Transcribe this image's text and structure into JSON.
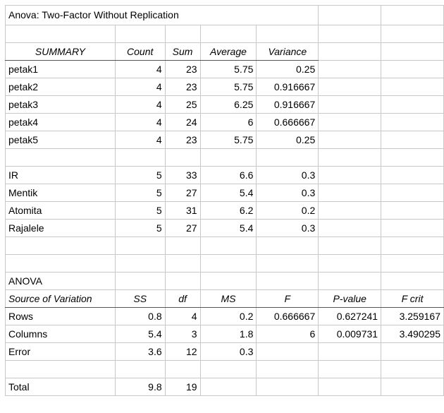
{
  "title": "Anova: Two-Factor Without Replication",
  "summary": {
    "headers": [
      "SUMMARY",
      "Count",
      "Sum",
      "Average",
      "Variance"
    ],
    "rows_block": [
      [
        "petak1",
        "4",
        "23",
        "5.75",
        "0.25"
      ],
      [
        "petak2",
        "4",
        "23",
        "5.75",
        "0.916667"
      ],
      [
        "petak3",
        "4",
        "25",
        "6.25",
        "0.916667"
      ],
      [
        "petak4",
        "4",
        "24",
        "6",
        "0.666667"
      ],
      [
        "petak5",
        "4",
        "23",
        "5.75",
        "0.25"
      ]
    ],
    "columns_block": [
      [
        "IR",
        "5",
        "33",
        "6.6",
        "0.3"
      ],
      [
        "Mentik",
        "5",
        "27",
        "5.4",
        "0.3"
      ],
      [
        "Atomita",
        "5",
        "31",
        "6.2",
        "0.2"
      ],
      [
        "Rajalele",
        "5",
        "27",
        "5.4",
        "0.3"
      ]
    ]
  },
  "anova": {
    "label": "ANOVA",
    "headers": [
      "Source of Variation",
      "SS",
      "df",
      "MS",
      "F",
      "P-value",
      "F crit"
    ],
    "rows": [
      [
        "Rows",
        "0.8",
        "4",
        "0.2",
        "0.666667",
        "0.627241",
        "3.259167"
      ],
      [
        "Columns",
        "5.4",
        "3",
        "1.8",
        "6",
        "0.009731",
        "3.490295"
      ],
      [
        "Error",
        "3.6",
        "12",
        "0.3",
        "",
        "",
        ""
      ]
    ],
    "total": [
      "Total",
      "9.8",
      "19",
      "",
      "",
      "",
      ""
    ]
  }
}
